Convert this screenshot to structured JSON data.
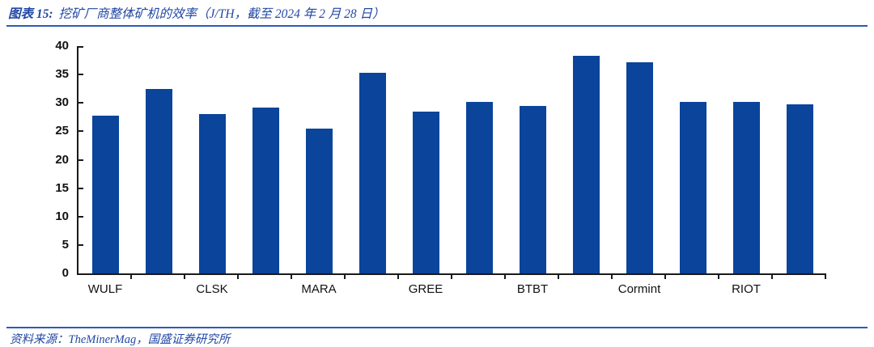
{
  "header": {
    "title_prefix": "图表 15:",
    "title_rest": "挖矿厂商整体矿机的效率（J/TH，截至 2024 年 2 月 28 日）"
  },
  "footer": {
    "source": "资料来源：TheMinerMag，国盛证券研究所"
  },
  "colors": {
    "bar": "#0A449B",
    "accent_text_blue": "#2147A5",
    "rule_blue": "#2B5BB7",
    "axis": "#1a1a1a"
  },
  "chart_data": {
    "type": "bar",
    "title": "挖矿厂商整体矿机的效率（J/TH，截至 2024 年 2 月 28 日）",
    "categories": [
      "WULF",
      "",
      "CLSK",
      "",
      "MARA",
      "",
      "GREE",
      "",
      "BTBT",
      "",
      "Cormint",
      "",
      "RIOT",
      ""
    ],
    "values": [
      27.8,
      32.5,
      28.1,
      29.2,
      25.5,
      35.3,
      28.5,
      30.2,
      29.4,
      38.3,
      37.2,
      30.2,
      30.2,
      29.7
    ],
    "labeled_categories": [
      "WULF",
      "CLSK",
      "MARA",
      "GREE",
      "BTBT",
      "Cormint",
      "RIOT"
    ],
    "xlabel": "",
    "ylabel": "",
    "ylim": [
      0,
      40
    ],
    "yticks": [
      0,
      5,
      10,
      15,
      20,
      25,
      30,
      35,
      40
    ],
    "grid": false,
    "legend": null,
    "bar_color": "#0A449B"
  }
}
